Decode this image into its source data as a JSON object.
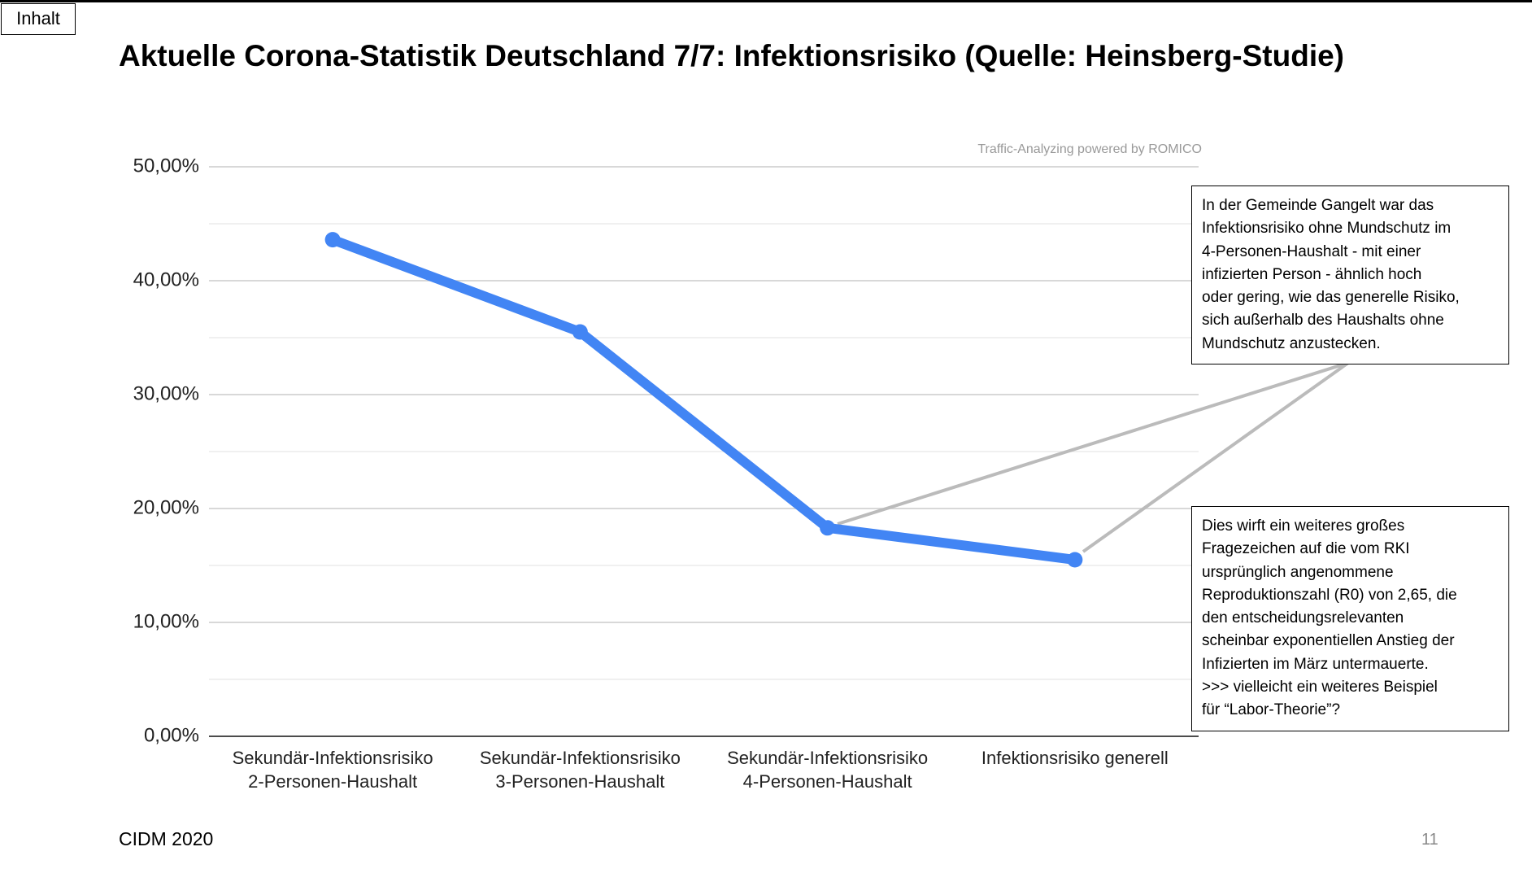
{
  "nav_button": "Inhalt",
  "footer": "CIDM 2020",
  "page_number": "11",
  "chart_data": {
    "type": "line",
    "title": "Aktuelle Corona-Statistik Deutschland 7/7: Infektionsrisiko (Quelle: Heinsberg-Studie)",
    "watermark": "Traffic-Analyzing powered by ROMICO",
    "categories": [
      "Sekundär-Infektionsrisiko\n2-Personen-Haushalt",
      "Sekundär-Infektionsrisiko\n3-Personen-Haushalt",
      "Sekundär-Infektionsrisiko\n4-Personen-Haushalt",
      "Infektionsrisiko generell"
    ],
    "values": [
      43.6,
      35.5,
      18.3,
      15.5
    ],
    "color": "#4285f4",
    "ylim": [
      0,
      50
    ],
    "yticks": [
      {
        "value": 0,
        "label": "0,00%"
      },
      {
        "value": 10,
        "label": "10,00%"
      },
      {
        "value": 20,
        "label": "20,00%"
      },
      {
        "value": 30,
        "label": "30,00%"
      },
      {
        "value": 40,
        "label": "40,00%"
      },
      {
        "value": 50,
        "label": "50,00%"
      }
    ],
    "minor_yticks": [
      5,
      15,
      25,
      35,
      45
    ],
    "grid": true,
    "annotations": [
      "In der Gemeinde Gangelt war das\nInfektionsrisiko ohne Mundschutz im\n4-Personen-Haushalt - mit einer\ninfizierten Person - ähnlich hoch\noder gering, wie das generelle Risiko,\nsich außerhalb des Haushalts ohne\nMundschutz anzustecken.",
      "Dies wirft ein weiteres großes\nFragezeichen auf die vom RKI\nursprünglich angenommene\nReproduktionszahl (R0) von 2,65, die\nden entscheidungsrelevanten\nscheinbar exponentiellen Anstieg der\nInfizierten im März untermauerte.\n>>> vielleicht ein weiteres Beispiel\nfür “Labor-Theorie”?"
    ]
  }
}
